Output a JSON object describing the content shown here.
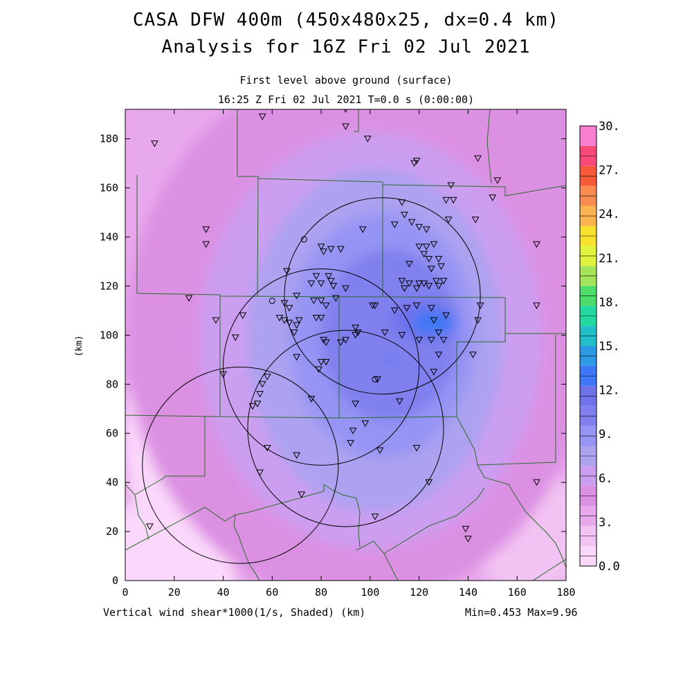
{
  "header": {
    "title_line1": "CASA DFW 400m (450x480x25, dx=0.4 km)",
    "title_line2": "Analysis for 16Z Fri 02 Jul 2021",
    "subtitle_line1": "First level above ground (surface)",
    "subtitle_line2": "16:25 Z Fri 02 Jul 2021    T=0.0 s (0:00:00)"
  },
  "footer": {
    "variable_label": "Vertical wind shear*1000(1/s, Shaded)  (km)",
    "minmax": "Min=0.453 Max=9.96"
  },
  "chart_data": {
    "type": "heatmap",
    "title": "CASA DFW 400m (450x480x25, dx=0.4 km)",
    "xlabel": "(km)",
    "ylabel": "(km)",
    "xlim": [
      0,
      180
    ],
    "ylim": [
      0,
      192
    ],
    "x_ticks": [
      0,
      20,
      40,
      60,
      80,
      100,
      120,
      140,
      160,
      180
    ],
    "y_ticks": [
      0,
      20,
      40,
      60,
      80,
      100,
      120,
      140,
      160,
      180
    ],
    "colorbar": {
      "labels": [
        "0.0",
        "3.",
        "6.",
        "9.",
        "12.",
        "15.",
        "18.",
        "21.",
        "24.",
        "27.",
        "30."
      ],
      "levels": [
        0,
        1.5,
        3,
        4.5,
        6,
        7.5,
        9,
        10.5,
        12,
        13.5,
        15,
        16.5,
        18,
        19.5,
        21,
        22.5,
        24,
        25.5,
        27,
        28.5,
        30
      ],
      "colors": [
        "#fbd8fb",
        "#f2c2f2",
        "#e8a8ec",
        "#dc90e2",
        "#cc9ef0",
        "#aca2f0",
        "#9694f4",
        "#8080ee",
        "#7072ea",
        "#3e78f6",
        "#2e9ae6",
        "#22beca",
        "#22d8a0",
        "#4cdc6a",
        "#a4e45a",
        "#e0f43e",
        "#f8e02e",
        "#fbb450",
        "#f88c50",
        "#f65a38",
        "#f84a78",
        "#f97ed2"
      ]
    },
    "field_blobs": [
      {
        "cx": 70,
        "cy": 165,
        "rx": 45,
        "ry": 25,
        "level": 1
      },
      {
        "cx": 20,
        "cy": 60,
        "rx": 20,
        "ry": 50,
        "level": 0
      },
      {
        "cx": 0,
        "cy": 0,
        "rx": 45,
        "ry": 30,
        "level": 0
      },
      {
        "cx": 165,
        "cy": 20,
        "rx": 25,
        "ry": 25,
        "level": 1
      },
      {
        "cx": 165,
        "cy": 165,
        "rx": 35,
        "ry": 40,
        "level": 3
      },
      {
        "cx": 95,
        "cy": 100,
        "rx": 95,
        "ry": 110,
        "level": 3
      },
      {
        "cx": 100,
        "cy": 98,
        "rx": 70,
        "ry": 85,
        "level": 4
      },
      {
        "cx": 102,
        "cy": 98,
        "rx": 52,
        "ry": 70,
        "level": 5
      },
      {
        "cx": 105,
        "cy": 100,
        "rx": 38,
        "ry": 50,
        "level": 6
      },
      {
        "cx": 108,
        "cy": 100,
        "rx": 28,
        "ry": 35,
        "level": 7
      },
      {
        "cx": 122,
        "cy": 106,
        "rx": 14,
        "ry": 8,
        "level": 8
      },
      {
        "cx": 126,
        "cy": 105,
        "rx": 9,
        "ry": 5,
        "level": 9
      },
      {
        "cx": 108,
        "cy": 90,
        "rx": 2,
        "ry": 2,
        "level": 9
      }
    ],
    "radar_rings": [
      {
        "cx": 105,
        "cy": 116,
        "r": 40
      },
      {
        "cx": 80,
        "cy": 87,
        "r": 40
      },
      {
        "cx": 90,
        "cy": 62,
        "r": 40
      },
      {
        "cx": 47,
        "cy": 47,
        "r": 40
      }
    ],
    "stations": [
      [
        56,
        189
      ],
      [
        90,
        192
      ],
      [
        12,
        178
      ],
      [
        90,
        185
      ],
      [
        99,
        180
      ],
      [
        118,
        170
      ],
      [
        119,
        171
      ],
      [
        144,
        172
      ],
      [
        152,
        163
      ],
      [
        133,
        161
      ],
      [
        150,
        156
      ],
      [
        131,
        155
      ],
      [
        134,
        155
      ],
      [
        113,
        154
      ],
      [
        114,
        149
      ],
      [
        117,
        146
      ],
      [
        132,
        147
      ],
      [
        143,
        147
      ],
      [
        110,
        145
      ],
      [
        120,
        144
      ],
      [
        33,
        143
      ],
      [
        97,
        143
      ],
      [
        123,
        143
      ],
      [
        33,
        137
      ],
      [
        126,
        137
      ],
      [
        80,
        136
      ],
      [
        81,
        134
      ],
      [
        84,
        135
      ],
      [
        88,
        135
      ],
      [
        168,
        137
      ],
      [
        120,
        136
      ],
      [
        123,
        136
      ],
      [
        122,
        133
      ],
      [
        124,
        131
      ],
      [
        128,
        131
      ],
      [
        116,
        129
      ],
      [
        129,
        128
      ],
      [
        125,
        127
      ],
      [
        66,
        126
      ],
      [
        78,
        124
      ],
      [
        83,
        124
      ],
      [
        84,
        122
      ],
      [
        127,
        122
      ],
      [
        113,
        122
      ],
      [
        116,
        121
      ],
      [
        122,
        121
      ],
      [
        130,
        122
      ],
      [
        76,
        121
      ],
      [
        80,
        121
      ],
      [
        85,
        120
      ],
      [
        90,
        119
      ],
      [
        114,
        119
      ],
      [
        119,
        119
      ],
      [
        120,
        121
      ],
      [
        124,
        120
      ],
      [
        128,
        120
      ],
      [
        26,
        115
      ],
      [
        70,
        116
      ],
      [
        77,
        114
      ],
      [
        80,
        114
      ],
      [
        82,
        112
      ],
      [
        86,
        115
      ],
      [
        65,
        113
      ],
      [
        67,
        111
      ],
      [
        101,
        112
      ],
      [
        102,
        112
      ],
      [
        110,
        110
      ],
      [
        115,
        111
      ],
      [
        119,
        112
      ],
      [
        125,
        111
      ],
      [
        145,
        112
      ],
      [
        168,
        112
      ],
      [
        37,
        106
      ],
      [
        48,
        108
      ],
      [
        63,
        107
      ],
      [
        65,
        106
      ],
      [
        67,
        105
      ],
      [
        70,
        104
      ],
      [
        71,
        106
      ],
      [
        78,
        107
      ],
      [
        80,
        107
      ],
      [
        131,
        108
      ],
      [
        144,
        106
      ],
      [
        126,
        106
      ],
      [
        69,
        101
      ],
      [
        94,
        103
      ],
      [
        95,
        101
      ],
      [
        106,
        101
      ],
      [
        113,
        100
      ],
      [
        128,
        101
      ],
      [
        45,
        99
      ],
      [
        81,
        98
      ],
      [
        82,
        97
      ],
      [
        88,
        97
      ],
      [
        90,
        98
      ],
      [
        94,
        100
      ],
      [
        120,
        98
      ],
      [
        125,
        98
      ],
      [
        130,
        98
      ],
      [
        70,
        91
      ],
      [
        80,
        89
      ],
      [
        82,
        89
      ],
      [
        79,
        86
      ],
      [
        128,
        92
      ],
      [
        142,
        92
      ],
      [
        126,
        85
      ],
      [
        103,
        82
      ],
      [
        58,
        83
      ],
      [
        40,
        84
      ],
      [
        56,
        80
      ],
      [
        55,
        76
      ],
      [
        76,
        74
      ],
      [
        94,
        72
      ],
      [
        112,
        73
      ],
      [
        52,
        71
      ],
      [
        54,
        72
      ],
      [
        93,
        61
      ],
      [
        98,
        64
      ],
      [
        58,
        54
      ],
      [
        92,
        56
      ],
      [
        70,
        51
      ],
      [
        104,
        53
      ],
      [
        119,
        54
      ],
      [
        55,
        44
      ],
      [
        124,
        40
      ],
      [
        72,
        35
      ],
      [
        102,
        26
      ],
      [
        168,
        40
      ],
      [
        10,
        22
      ],
      [
        139,
        21
      ],
      [
        140,
        17
      ]
    ],
    "special_markers": [
      [
        73,
        139
      ],
      [
        60,
        114
      ],
      [
        102,
        82
      ]
    ]
  }
}
